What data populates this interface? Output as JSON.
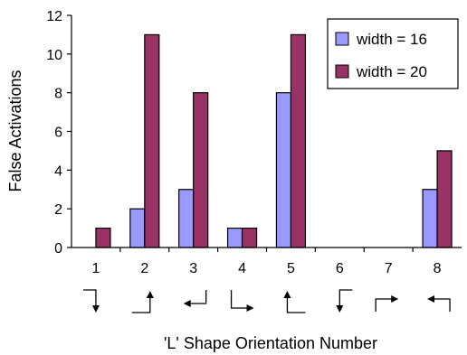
{
  "chart_data": {
    "type": "bar",
    "title": "",
    "xlabel": "'L' Shape Orientation Number",
    "ylabel": "False Activations",
    "ylim": [
      0,
      12
    ],
    "yticks": [
      0,
      2,
      4,
      6,
      8,
      10,
      12
    ],
    "categories": [
      "1",
      "2",
      "3",
      "4",
      "5",
      "6",
      "7",
      "8"
    ],
    "series": [
      {
        "name": "width = 16",
        "color": "#9999ff",
        "values": [
          0,
          2,
          3,
          1,
          8,
          0,
          0,
          3
        ]
      },
      {
        "name": "width = 20",
        "color": "#993366",
        "values": [
          1,
          11,
          8,
          1,
          11,
          0,
          0,
          5
        ]
      }
    ],
    "legend_position": "top-right",
    "grid": false,
    "orientation_glyphs": [
      "L-shape-orientation-1-icon",
      "L-shape-orientation-2-icon",
      "L-shape-orientation-3-icon",
      "L-shape-orientation-4-icon",
      "L-shape-orientation-5-icon",
      "L-shape-orientation-6-icon",
      "L-shape-orientation-7-icon",
      "L-shape-orientation-8-icon"
    ]
  }
}
